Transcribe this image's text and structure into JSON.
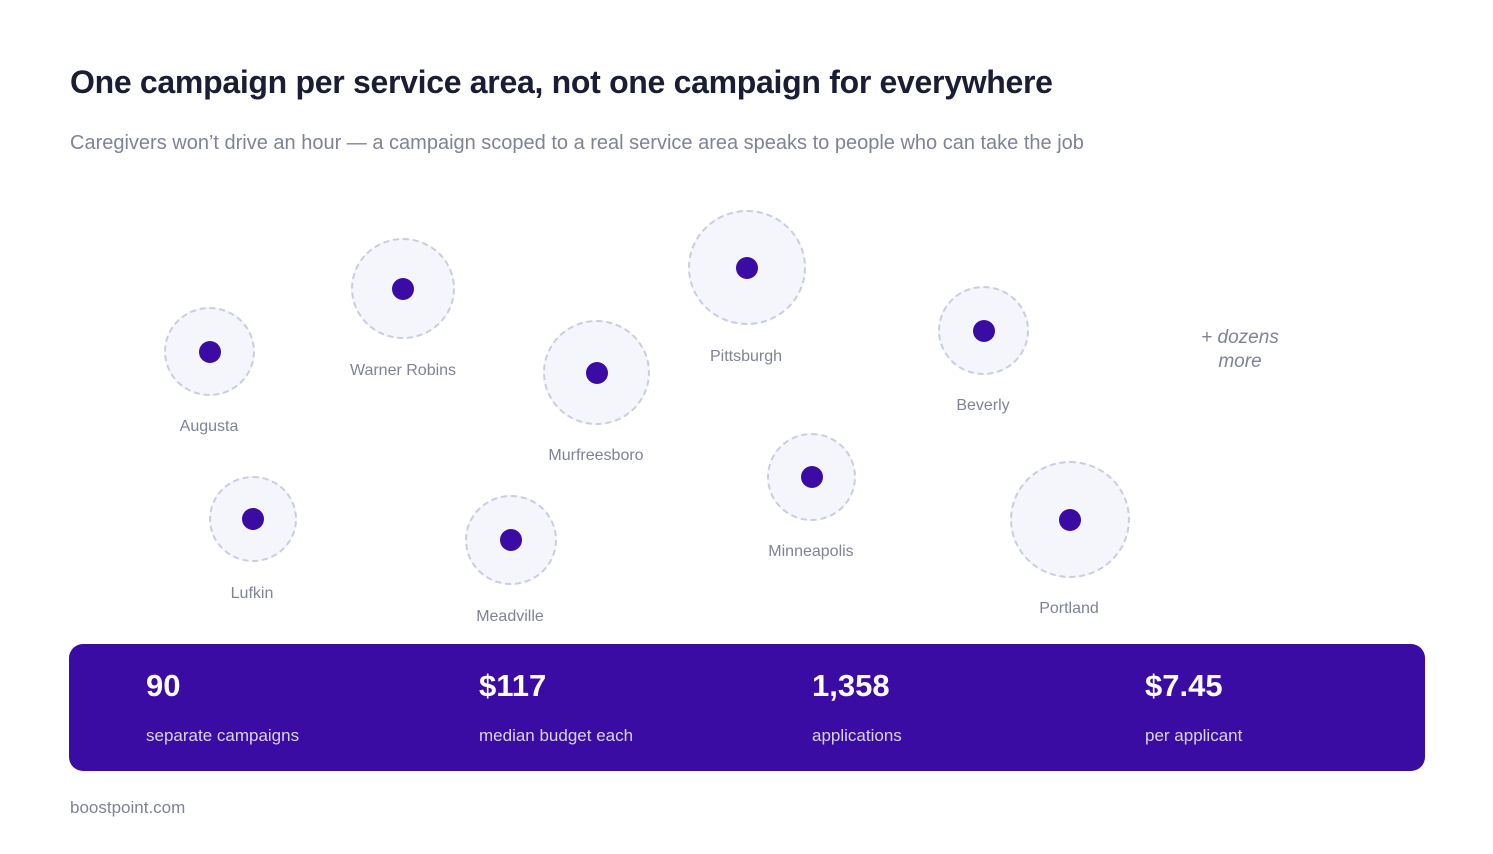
{
  "title": "One campaign per service area, not one campaign for everywhere",
  "subtitle": "Caregivers won’t drive an hour — a campaign scoped to a real service area speaks to people who can take the job",
  "colors": {
    "accent": "#3a0ca3",
    "area_fill": "#f4f6fc",
    "area_border": "#c9cede"
  },
  "cities": [
    {
      "name": "Augusta"
    },
    {
      "name": "Warner Robins"
    },
    {
      "name": "Murfreesboro"
    },
    {
      "name": "Pittsburgh"
    },
    {
      "name": "Beverly"
    },
    {
      "name": "Lufkin"
    },
    {
      "name": "Meadville"
    },
    {
      "name": "Minneapolis"
    },
    {
      "name": "Portland"
    }
  ],
  "more_label": "+ dozens more",
  "stats": [
    {
      "value": "90",
      "label": "separate campaigns"
    },
    {
      "value": "$117",
      "label": "median budget each"
    },
    {
      "value": "1,358",
      "label": "applications"
    },
    {
      "value": "$7.45",
      "label": "per applicant"
    }
  ],
  "footer": "boostpoint.com"
}
